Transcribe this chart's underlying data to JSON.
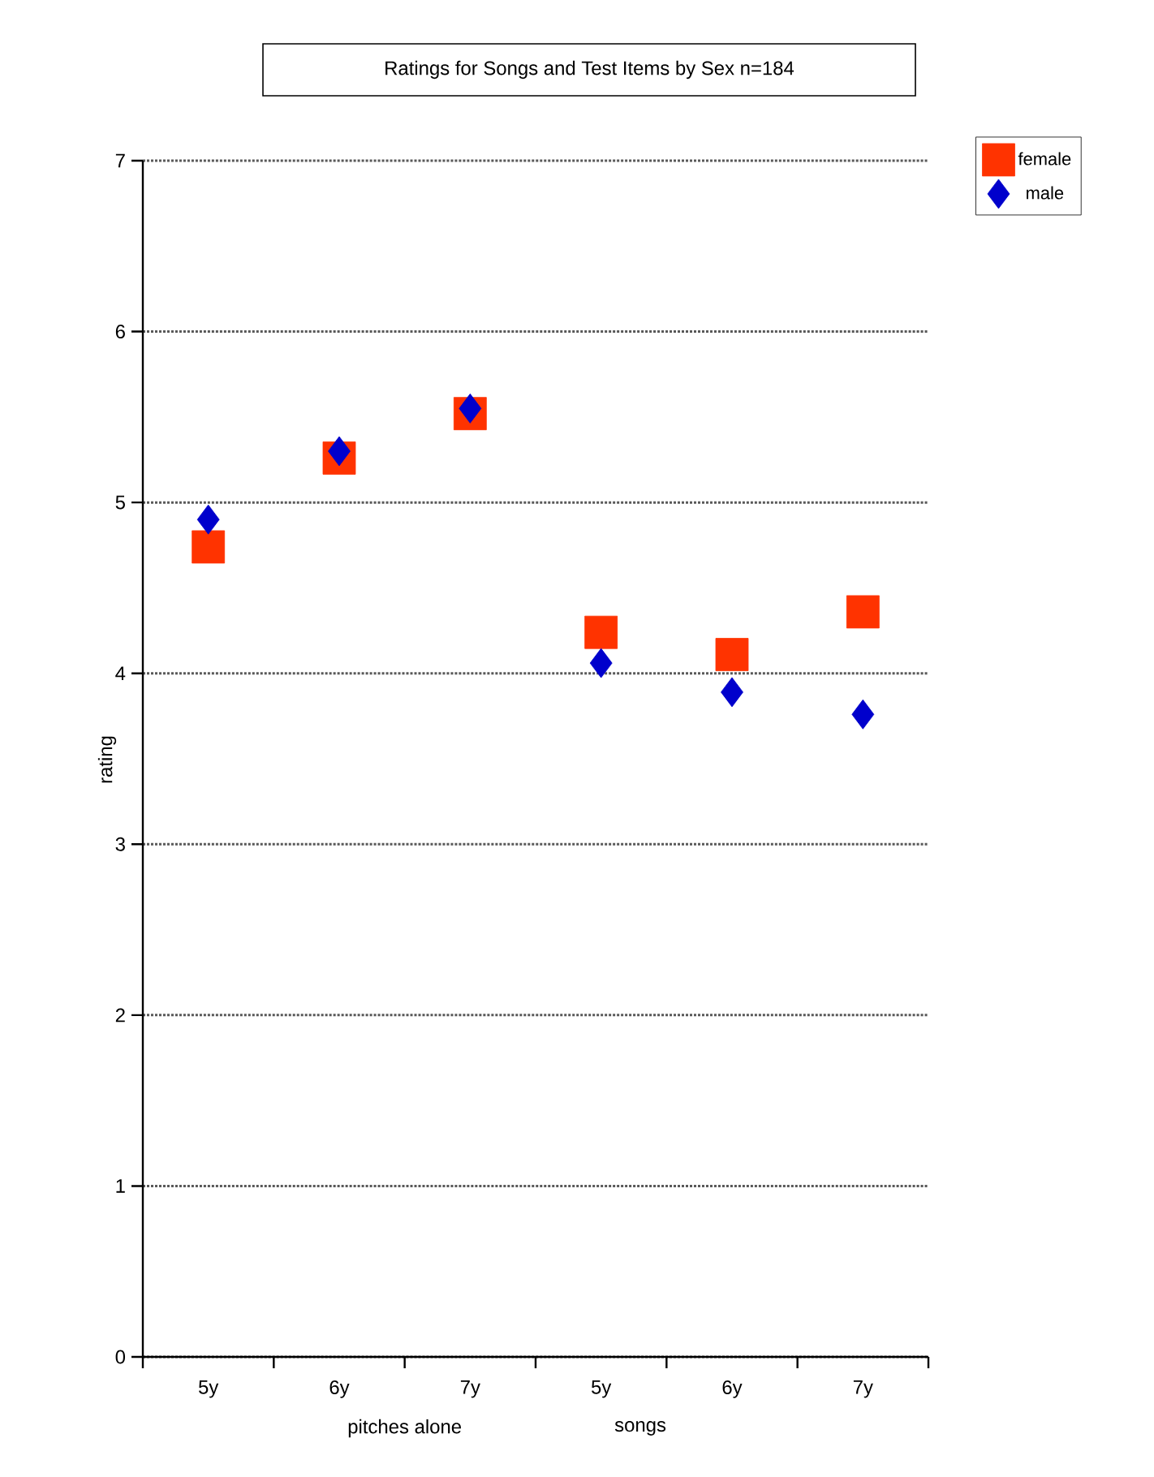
{
  "chart_data": {
    "type": "scatter",
    "title": "Ratings for Songs and Test Items by Sex n=184",
    "ylabel": "rating",
    "categories": [
      "5y",
      "6y",
      "7y",
      "5y",
      "6y",
      "7y"
    ],
    "series": [
      {
        "name": "female",
        "color": "#ff3300",
        "marker": "square",
        "values": [
          4.74,
          5.26,
          5.52,
          4.24,
          4.11,
          4.36
        ]
      },
      {
        "name": "male",
        "color": "#0000cc",
        "marker": "diamond",
        "values": [
          4.9,
          5.3,
          5.55,
          4.06,
          3.89,
          3.76
        ]
      }
    ],
    "annotations": [
      "pitches alone",
      "songs"
    ],
    "ylim": [
      0,
      7
    ],
    "yticks": [
      0,
      1,
      2,
      3,
      4,
      5,
      6,
      7
    ],
    "grid": "y",
    "legend": "top right"
  }
}
